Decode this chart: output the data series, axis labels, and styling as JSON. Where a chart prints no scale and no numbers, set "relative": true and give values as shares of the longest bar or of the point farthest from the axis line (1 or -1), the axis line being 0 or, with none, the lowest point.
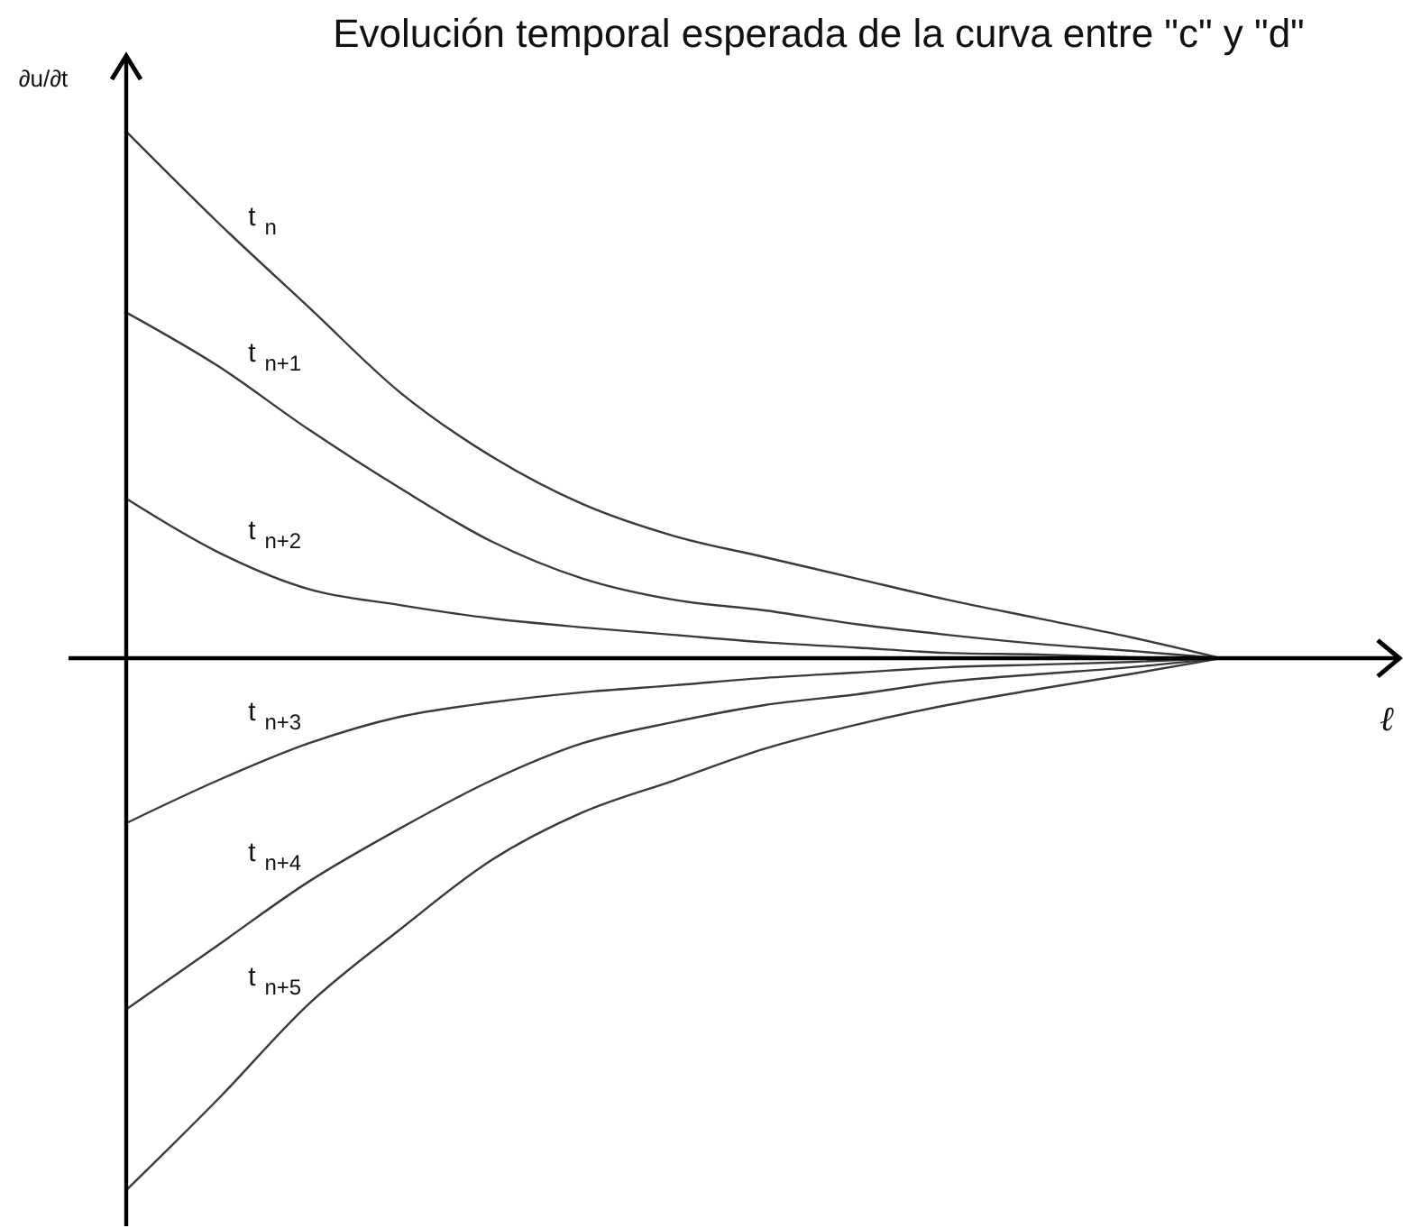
{
  "chart_data": {
    "type": "line",
    "title": "Evolución temporal esperada de la curva entre \"c\" y \"d\"",
    "xlabel": "ℓ",
    "ylabel": "∂u/∂t",
    "relative": true,
    "marker": "none",
    "line_style": "solid",
    "categories": [
      null,
      null,
      null,
      null,
      null,
      null,
      null,
      null,
      null,
      null,
      null,
      null,
      null
    ],
    "series": [
      {
        "name": "t$_{n}$",
        "color": "#3a3a3a",
        "values": [
          0.99,
          0.82,
          0.66,
          0.5,
          0.38,
          0.29,
          0.23,
          0.19,
          0.15,
          0.11,
          0.075,
          0.04,
          0
        ]
      },
      {
        "name": "t$_{n+1}$",
        "color": "#3a3a3a",
        "values": [
          0.65,
          0.55,
          0.43,
          0.32,
          0.22,
          0.15,
          0.11,
          0.09,
          0.064,
          0.044,
          0.027,
          0.014,
          0
        ]
      },
      {
        "name": "t$_{n+2}$",
        "color": "#3a3a3a",
        "values": [
          0.3,
          0.2,
          0.13,
          0.1,
          0.075,
          0.058,
          0.044,
          0.03,
          0.02,
          0.01,
          0.007,
          0.002,
          0
        ]
      },
      {
        "name": "t$_{n+3}$",
        "color": "#3a3a3a",
        "values": [
          -0.31,
          -0.23,
          -0.16,
          -0.11,
          -0.083,
          -0.064,
          -0.051,
          -0.037,
          -0.027,
          -0.017,
          -0.012,
          -0.007,
          0
        ]
      },
      {
        "name": "t$_{n+4}$",
        "color": "#3a3a3a",
        "values": [
          -0.66,
          -0.54,
          -0.42,
          -0.32,
          -0.23,
          -0.16,
          -0.12,
          -0.088,
          -0.068,
          -0.044,
          -0.03,
          -0.017,
          0
        ]
      },
      {
        "name": "t$_{n+5}$",
        "color": "#3a3a3a",
        "values": [
          -1,
          -0.83,
          -0.65,
          -0.51,
          -0.38,
          -0.29,
          -0.23,
          -0.17,
          -0.125,
          -0.088,
          -0.058,
          -0.03,
          0
        ]
      }
    ]
  }
}
